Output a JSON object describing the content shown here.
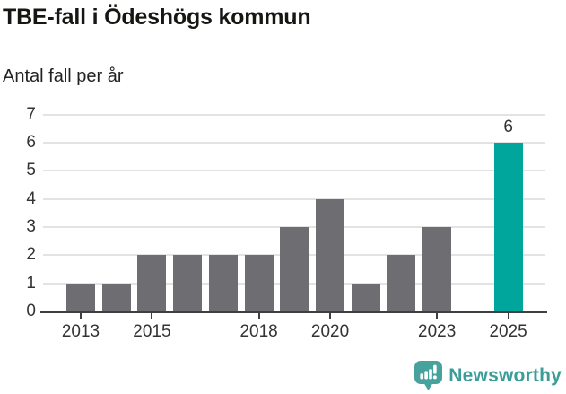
{
  "header": {
    "title": "TBE-fall i Ödeshögs kommun",
    "subtitle": "Antal fall per år"
  },
  "chart_data": {
    "type": "bar",
    "title": "TBE-fall i Ödeshögs kommun",
    "subtitle": "Antal fall per år",
    "categories": [
      2013,
      2014,
      2015,
      2016,
      2017,
      2018,
      2019,
      2020,
      2021,
      2022,
      2023,
      2024,
      2025
    ],
    "values": [
      1,
      1,
      2,
      2,
      2,
      2,
      3,
      4,
      1,
      2,
      3,
      0,
      6
    ],
    "ylim": [
      0,
      7
    ],
    "yticks": [
      0,
      1,
      2,
      3,
      4,
      5,
      6,
      7
    ],
    "xtick_labels": [
      2013,
      2015,
      2018,
      2020,
      2023,
      2025
    ],
    "grid": "horizontal",
    "legend": "none",
    "highlight_category": 2025,
    "annotation": {
      "category": 2025,
      "label": "6"
    },
    "colors": {
      "bar": "#6e6d71",
      "highlight": "#00a59b",
      "gridline": "#e3e3e3",
      "axis": "#3f3f41",
      "tick_label": "#333333"
    }
  },
  "footer": {
    "brand": "Newsworthy",
    "brand_color": "#3a9d99",
    "logo_icon": "newsworthy-speech-bubble-chart-icon",
    "logo_color": "#47a29e"
  }
}
